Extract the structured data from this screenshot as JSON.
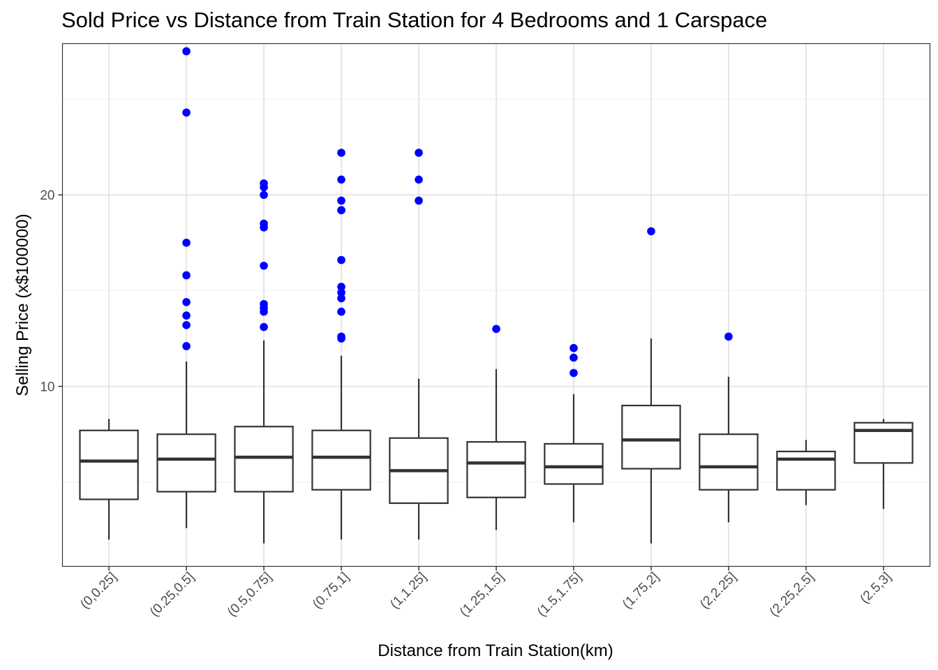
{
  "chart_data": {
    "type": "box",
    "title": "Sold Price vs Distance from Train Station for 4 Bedrooms and 1 Carspace",
    "xlabel": "Distance from Train Station(km)",
    "ylabel": "Selling Price (x$100000)",
    "ylim": [
      0.6,
      27.9
    ],
    "y_ticks": [
      10,
      20
    ],
    "grid": true,
    "outlier_color": "#0000ff",
    "box_color": "#333333",
    "categories": [
      "(0,0.25]",
      "(0.25,0.5]",
      "(0.5,0.75]",
      "(0.75,1]",
      "(1,1.25]",
      "(1.25,1.5]",
      "(1.5,1.75]",
      "(1.75,2]",
      "(2,2.25]",
      "(2.25,2.5]",
      "(2.5,3]"
    ],
    "boxes": [
      {
        "min": 2.0,
        "q1": 4.1,
        "median": 6.1,
        "q3": 7.7,
        "max": 8.3,
        "outliers": []
      },
      {
        "min": 2.6,
        "q1": 4.5,
        "median": 6.2,
        "q3": 7.5,
        "max": 11.3,
        "outliers": [
          27.5,
          24.3,
          17.5,
          15.8,
          14.4,
          13.7,
          13.2,
          12.1
        ]
      },
      {
        "min": 1.8,
        "q1": 4.5,
        "median": 6.3,
        "q3": 7.9,
        "max": 12.4,
        "outliers": [
          20.6,
          20.4,
          20.0,
          18.5,
          18.3,
          16.3,
          14.3,
          14.1,
          13.9,
          13.1
        ]
      },
      {
        "min": 2.0,
        "q1": 4.6,
        "median": 6.3,
        "q3": 7.7,
        "max": 11.6,
        "outliers": [
          22.2,
          20.8,
          19.7,
          19.2,
          19.2,
          16.6,
          15.2,
          14.9,
          14.6,
          13.9,
          12.6,
          12.5
        ]
      },
      {
        "min": 2.0,
        "q1": 3.9,
        "median": 5.6,
        "q3": 7.3,
        "max": 10.4,
        "outliers": [
          22.2,
          20.8,
          19.7
        ]
      },
      {
        "min": 2.5,
        "q1": 4.2,
        "median": 6.0,
        "q3": 7.1,
        "max": 10.9,
        "outliers": [
          13.0
        ]
      },
      {
        "min": 2.9,
        "q1": 4.9,
        "median": 5.8,
        "q3": 7.0,
        "max": 9.6,
        "outliers": [
          12.0,
          11.5,
          10.7
        ]
      },
      {
        "min": 1.8,
        "q1": 5.7,
        "median": 7.2,
        "q3": 9.0,
        "max": 12.5,
        "outliers": [
          18.1
        ]
      },
      {
        "min": 2.9,
        "q1": 4.6,
        "median": 5.8,
        "q3": 7.5,
        "max": 10.5,
        "outliers": [
          12.6
        ]
      },
      {
        "min": 3.8,
        "q1": 4.6,
        "median": 6.2,
        "q3": 6.6,
        "max": 7.2,
        "outliers": []
      },
      {
        "min": 3.6,
        "q1": 6.0,
        "median": 7.7,
        "q3": 8.1,
        "max": 8.3,
        "outliers": []
      }
    ]
  }
}
